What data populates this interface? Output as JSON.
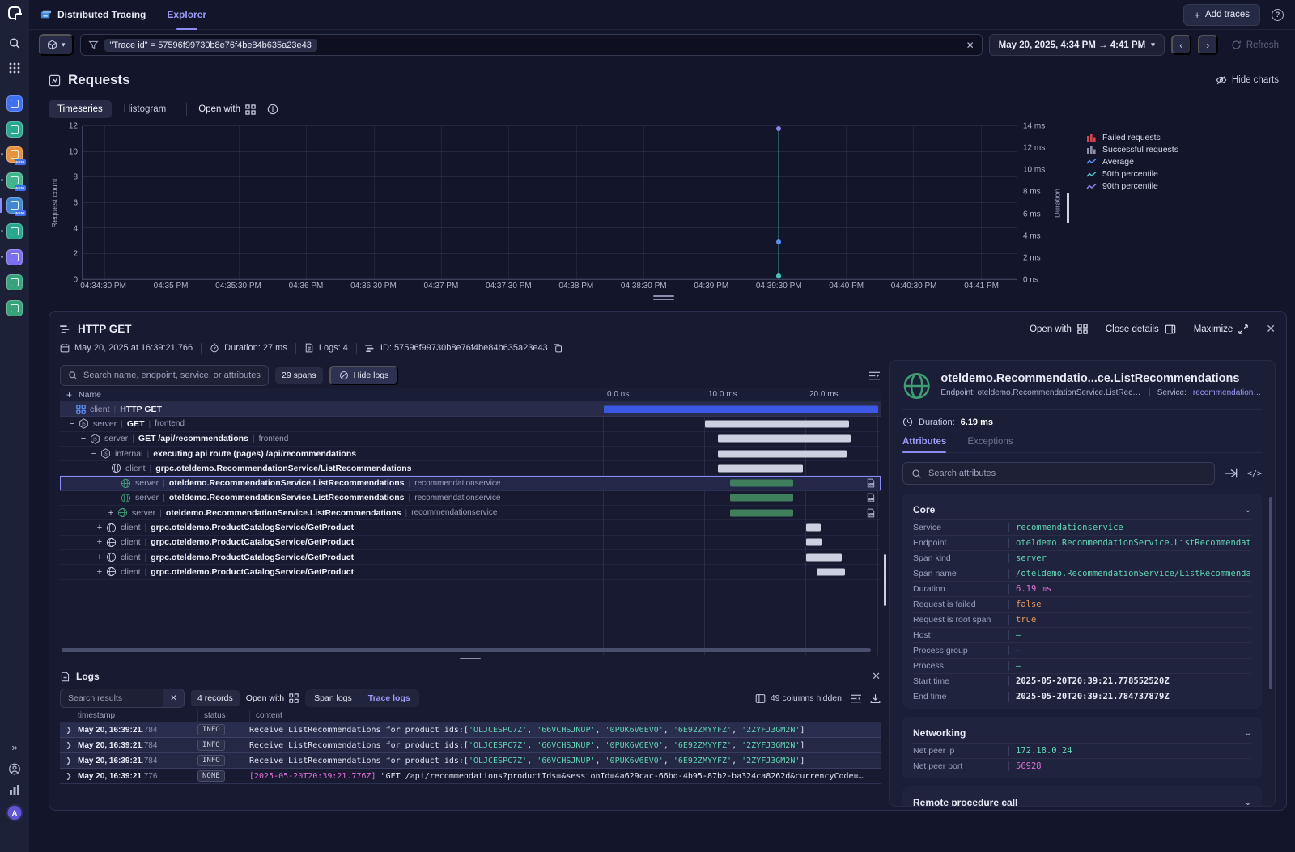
{
  "app": {
    "nav_title": "Distributed Tracing",
    "nav_tab": "Explorer",
    "add_traces": "Add traces",
    "filter_query": "\"Trace id\" = 57596f99730b8e76f4be84b635a23e43",
    "date_range": "May 20, 2025, 4:34 PM → 4:41 PM",
    "refresh_label": "Refresh"
  },
  "sidebar": {
    "apps": [
      {
        "name": "dashboards",
        "color": "#3f6ff0"
      },
      {
        "name": "apm",
        "color": "#2aa88f"
      },
      {
        "name": "alerts",
        "color": "#e8923d",
        "badge": "NEW",
        "dot": true
      },
      {
        "name": "kubernetes",
        "color": "#43b58b",
        "badge": "NEW",
        "dot": true
      },
      {
        "name": "distributed-tracing",
        "color": "#3f87d6",
        "badge": "NEW",
        "active": true
      },
      {
        "name": "metrics",
        "color": "#2aa88f",
        "dot": true
      },
      {
        "name": "datasets",
        "color": "#7a6ff0",
        "dot": true
      },
      {
        "name": "logs-report-1",
        "color": "#37a37a"
      },
      {
        "name": "logs-report-2",
        "color": "#37a37a"
      }
    ]
  },
  "requests": {
    "title": "Requests",
    "hide_charts": "Hide charts",
    "tab_timeseries": "Timeseries",
    "tab_histogram": "Histogram",
    "open_with": "Open with"
  },
  "chart_data": {
    "type": "scatter",
    "title": "Requests",
    "grid": true,
    "x_ticks": [
      "04:34:30 PM",
      "04:35 PM",
      "04:35:30 PM",
      "04:36 PM",
      "04:36:30 PM",
      "04:37 PM",
      "04:37:30 PM",
      "04:38 PM",
      "04:38:30 PM",
      "04:39 PM",
      "04:39:30 PM",
      "04:40 PM",
      "04:40:30 PM",
      "04:41 PM"
    ],
    "left_axis": {
      "label": "Request count",
      "ticks": [
        "0",
        "2",
        "4",
        "6",
        "8",
        "10",
        "12"
      ],
      "range": [
        0,
        12
      ]
    },
    "right_axis": {
      "label": "Duration",
      "ticks": [
        "0 ns",
        "2 ms",
        "4 ms",
        "6 ms",
        "8 ms",
        "10 ms",
        "12 ms",
        "14 ms"
      ],
      "range_ms": [
        0,
        14
      ]
    },
    "legend": [
      {
        "label": "Failed requests",
        "color": "#d9444c",
        "glyph": "bars"
      },
      {
        "label": "Successful requests",
        "color": "#8b90a8",
        "glyph": "bars"
      },
      {
        "label": "Average",
        "color": "#5b8ff9",
        "glyph": "line"
      },
      {
        "label": "50th percentile",
        "color": "#45c6c0",
        "glyph": "line"
      },
      {
        "label": "90th percentile",
        "color": "#8a85f0",
        "glyph": "line"
      }
    ],
    "selected_time": "04:39:30 PM",
    "selected_time_index": 10,
    "marker_line_color": "#2e6e74",
    "points": [
      {
        "series": "90th percentile",
        "time": "04:39:30 PM",
        "duration_ms": 13.8,
        "color": "#8a85f0"
      },
      {
        "series": "Average",
        "time": "04:39:30 PM",
        "duration_ms": 3.4,
        "color": "#5b8ff9"
      },
      {
        "series": "50th percentile",
        "time": "04:39:30 PM",
        "duration_ms": 0.3,
        "color": "#45c6c0"
      }
    ]
  },
  "trace": {
    "title": "HTTP GET",
    "timestamp": "May 20, 2025 at 16:39:21.766",
    "duration": "Duration: 27 ms",
    "logs": "Logs: 4",
    "id": "ID: 57596f99730b8e76f4be84b635a23e43",
    "open_with": "Open with",
    "close_details": "Close details",
    "maximize": "Maximize"
  },
  "spans": {
    "search_placeholder": "Search name, endpoint, service, or attributes",
    "count": "29 spans",
    "hide_logs": "Hide logs",
    "name_header": "Name",
    "time_cols": [
      "0.0 ns",
      "10.0 ms",
      "20.0 ms"
    ],
    "total_ms": 27.4,
    "rows": [
      {
        "pad": 18,
        "expander": "",
        "icon": "grid-blue",
        "kind": "client",
        "name": "HTTP GET",
        "service": "",
        "bar": [
          0,
          27.1,
          "blue"
        ],
        "highlight": true,
        "log": false
      },
      {
        "pad": 8,
        "expander": "−",
        "icon": "js",
        "kind": "server",
        "name": "GET",
        "service": "frontend",
        "bar": [
          10.0,
          24.2,
          "grey"
        ]
      },
      {
        "pad": 22,
        "expander": "−",
        "icon": "js",
        "kind": "server",
        "name": "GET /api/recommendations",
        "service": "frontend",
        "bar": [
          11.3,
          24.4,
          "grey"
        ]
      },
      {
        "pad": 35,
        "expander": "−",
        "icon": "js",
        "kind": "internal",
        "name": "executing api route (pages) /api/recommendations",
        "service": "",
        "bar": [
          11.3,
          24.0,
          "grey"
        ]
      },
      {
        "pad": 48,
        "expander": "−",
        "icon": "globe",
        "kind": "client",
        "name": "grpc.oteldemo.RecommendationService/ListRecommendations",
        "service": "",
        "bar": [
          11.3,
          19.7,
          "grey"
        ]
      },
      {
        "pad": 74,
        "expander": "",
        "icon": "globe-green",
        "kind": "server",
        "name": "oteldemo.RecommendationService.ListRecommendations",
        "service": "recommendationservice",
        "bar": [
          12.5,
          18.7,
          "green"
        ],
        "selected": true,
        "log": true
      },
      {
        "pad": 74,
        "expander": "",
        "icon": "globe-green",
        "kind": "server",
        "name": "oteldemo.RecommendationService.ListRecommendations",
        "service": "recommendationservice",
        "bar": [
          12.5,
          18.7,
          "green"
        ],
        "log": true
      },
      {
        "pad": 56,
        "expander": "+",
        "icon": "globe-green",
        "kind": "server",
        "name": "oteldemo.RecommendationService.ListRecommendations",
        "service": "recommendationservice",
        "bar": [
          12.5,
          18.75,
          "green"
        ],
        "log": true
      },
      {
        "pad": 42,
        "expander": "+",
        "icon": "globe",
        "kind": "client",
        "name": "grpc.oteldemo.ProductCatalogService/GetProduct",
        "service": "",
        "bar": [
          20.0,
          21.4,
          "grey"
        ]
      },
      {
        "pad": 42,
        "expander": "+",
        "icon": "globe",
        "kind": "client",
        "name": "grpc.oteldemo.ProductCatalogService/GetProduct",
        "service": "",
        "bar": [
          20.0,
          21.5,
          "grey"
        ]
      },
      {
        "pad": 42,
        "expander": "+",
        "icon": "globe",
        "kind": "client",
        "name": "grpc.oteldemo.ProductCatalogService/GetProduct",
        "service": "",
        "bar": [
          20.0,
          23.5,
          "grey"
        ]
      },
      {
        "pad": 42,
        "expander": "+",
        "icon": "globe",
        "kind": "client",
        "name": "grpc.oteldemo.ProductCatalogService/GetProduct",
        "service": "",
        "bar": [
          21.0,
          23.8,
          "grey"
        ]
      }
    ]
  },
  "logs": {
    "title": "Logs",
    "search_placeholder": "Search results",
    "records": "4 records",
    "open_with": "Open with",
    "tabs": [
      {
        "label": "Span logs",
        "active": false
      },
      {
        "label": "Trace logs",
        "active": true
      }
    ],
    "columns_hidden": "49 columns hidden",
    "columns": [
      "timestamp",
      "status",
      "content"
    ],
    "rows": [
      {
        "ts": "May 20, 16:39:21",
        "ms": ".784",
        "status": "INFO",
        "prefix": "Receive ListRecommendations for product ids:[",
        "ids": [
          "'OLJCESPC7Z'",
          "'66VCHSJNUP'",
          "'0PUK6V6EV0'",
          "'6E92ZMYYFZ'",
          "'2ZYFJ3GM2N'"
        ],
        "suffix": "]"
      },
      {
        "ts": "May 20, 16:39:21",
        "ms": ".784",
        "status": "INFO",
        "prefix": "Receive ListRecommendations for product ids:[",
        "ids": [
          "'OLJCESPC7Z'",
          "'66VCHSJNUP'",
          "'0PUK6V6EV0'",
          "'6E92ZMYYFZ'",
          "'2ZYFJ3GM2N'"
        ],
        "suffix": "]"
      },
      {
        "ts": "May 20, 16:39:21",
        "ms": ".784",
        "status": "INFO",
        "prefix": "Receive ListRecommendations for product ids:[",
        "ids": [
          "'OLJCESPC7Z'",
          "'66VCHSJNUP'",
          "'0PUK6V6EV0'",
          "'6E92ZMYYFZ'",
          "'2ZYFJ3GM2N'"
        ],
        "suffix": "]"
      },
      {
        "ts": "May 20, 16:39:21",
        "ms": ".776",
        "status": "NONE",
        "bracket": "[2025-05-20T20:39:21.776Z]",
        "rest": " \"GET /api/recommendations?productIds=&sessionId=4a629cac-66bd-4b95-87b2-ba324ca8262d&currencyCode=…"
      }
    ]
  },
  "details": {
    "title": "oteldemo.Recommendatio...ce.ListRecommendations",
    "endpoint": "Endpoint: oteldemo.RecommendationService.ListRecomme...",
    "service_label": "Service:",
    "service_link": "recommendationse...",
    "duration_label": "Duration:",
    "duration_value": "6.19 ms",
    "tabs": [
      {
        "label": "Attributes",
        "active": true
      },
      {
        "label": "Exceptions",
        "active": false
      }
    ],
    "search_placeholder": "Search attributes",
    "sections": [
      {
        "title": "Core",
        "rows": [
          {
            "label": "Service",
            "value": "recommendationservice",
            "color": "teal"
          },
          {
            "label": "Endpoint",
            "value": "oteldemo.RecommendationService.ListRecommendati…",
            "color": "teal"
          },
          {
            "label": "Span kind",
            "value": "server",
            "color": "teal"
          },
          {
            "label": "Span name",
            "value": "/oteldemo.RecommendationService/ListRecommendat…",
            "color": "teal"
          },
          {
            "label": "Duration",
            "value": "6.19 ms",
            "color": "pink"
          },
          {
            "label": "Request is failed",
            "value": "false",
            "color": "orange"
          },
          {
            "label": "Request is root span",
            "value": "true",
            "color": "orange"
          },
          {
            "label": "Host",
            "value": "–",
            "color": "teal"
          },
          {
            "label": "Process group",
            "value": "–",
            "color": "teal"
          },
          {
            "label": "Process",
            "value": "–",
            "color": "teal"
          },
          {
            "label": "Start time",
            "value": "2025-05-20T20:39:21.778552520Z",
            "color": "white"
          },
          {
            "label": "End time",
            "value": "2025-05-20T20:39:21.784737879Z",
            "color": "white"
          }
        ]
      },
      {
        "title": "Networking",
        "rows": [
          {
            "label": "Net peer ip",
            "value": "172.18.0.24",
            "color": "teal"
          },
          {
            "label": "Net peer port",
            "value": "56928",
            "color": "pink"
          }
        ]
      },
      {
        "title": "Remote procedure call",
        "rows": []
      }
    ]
  }
}
